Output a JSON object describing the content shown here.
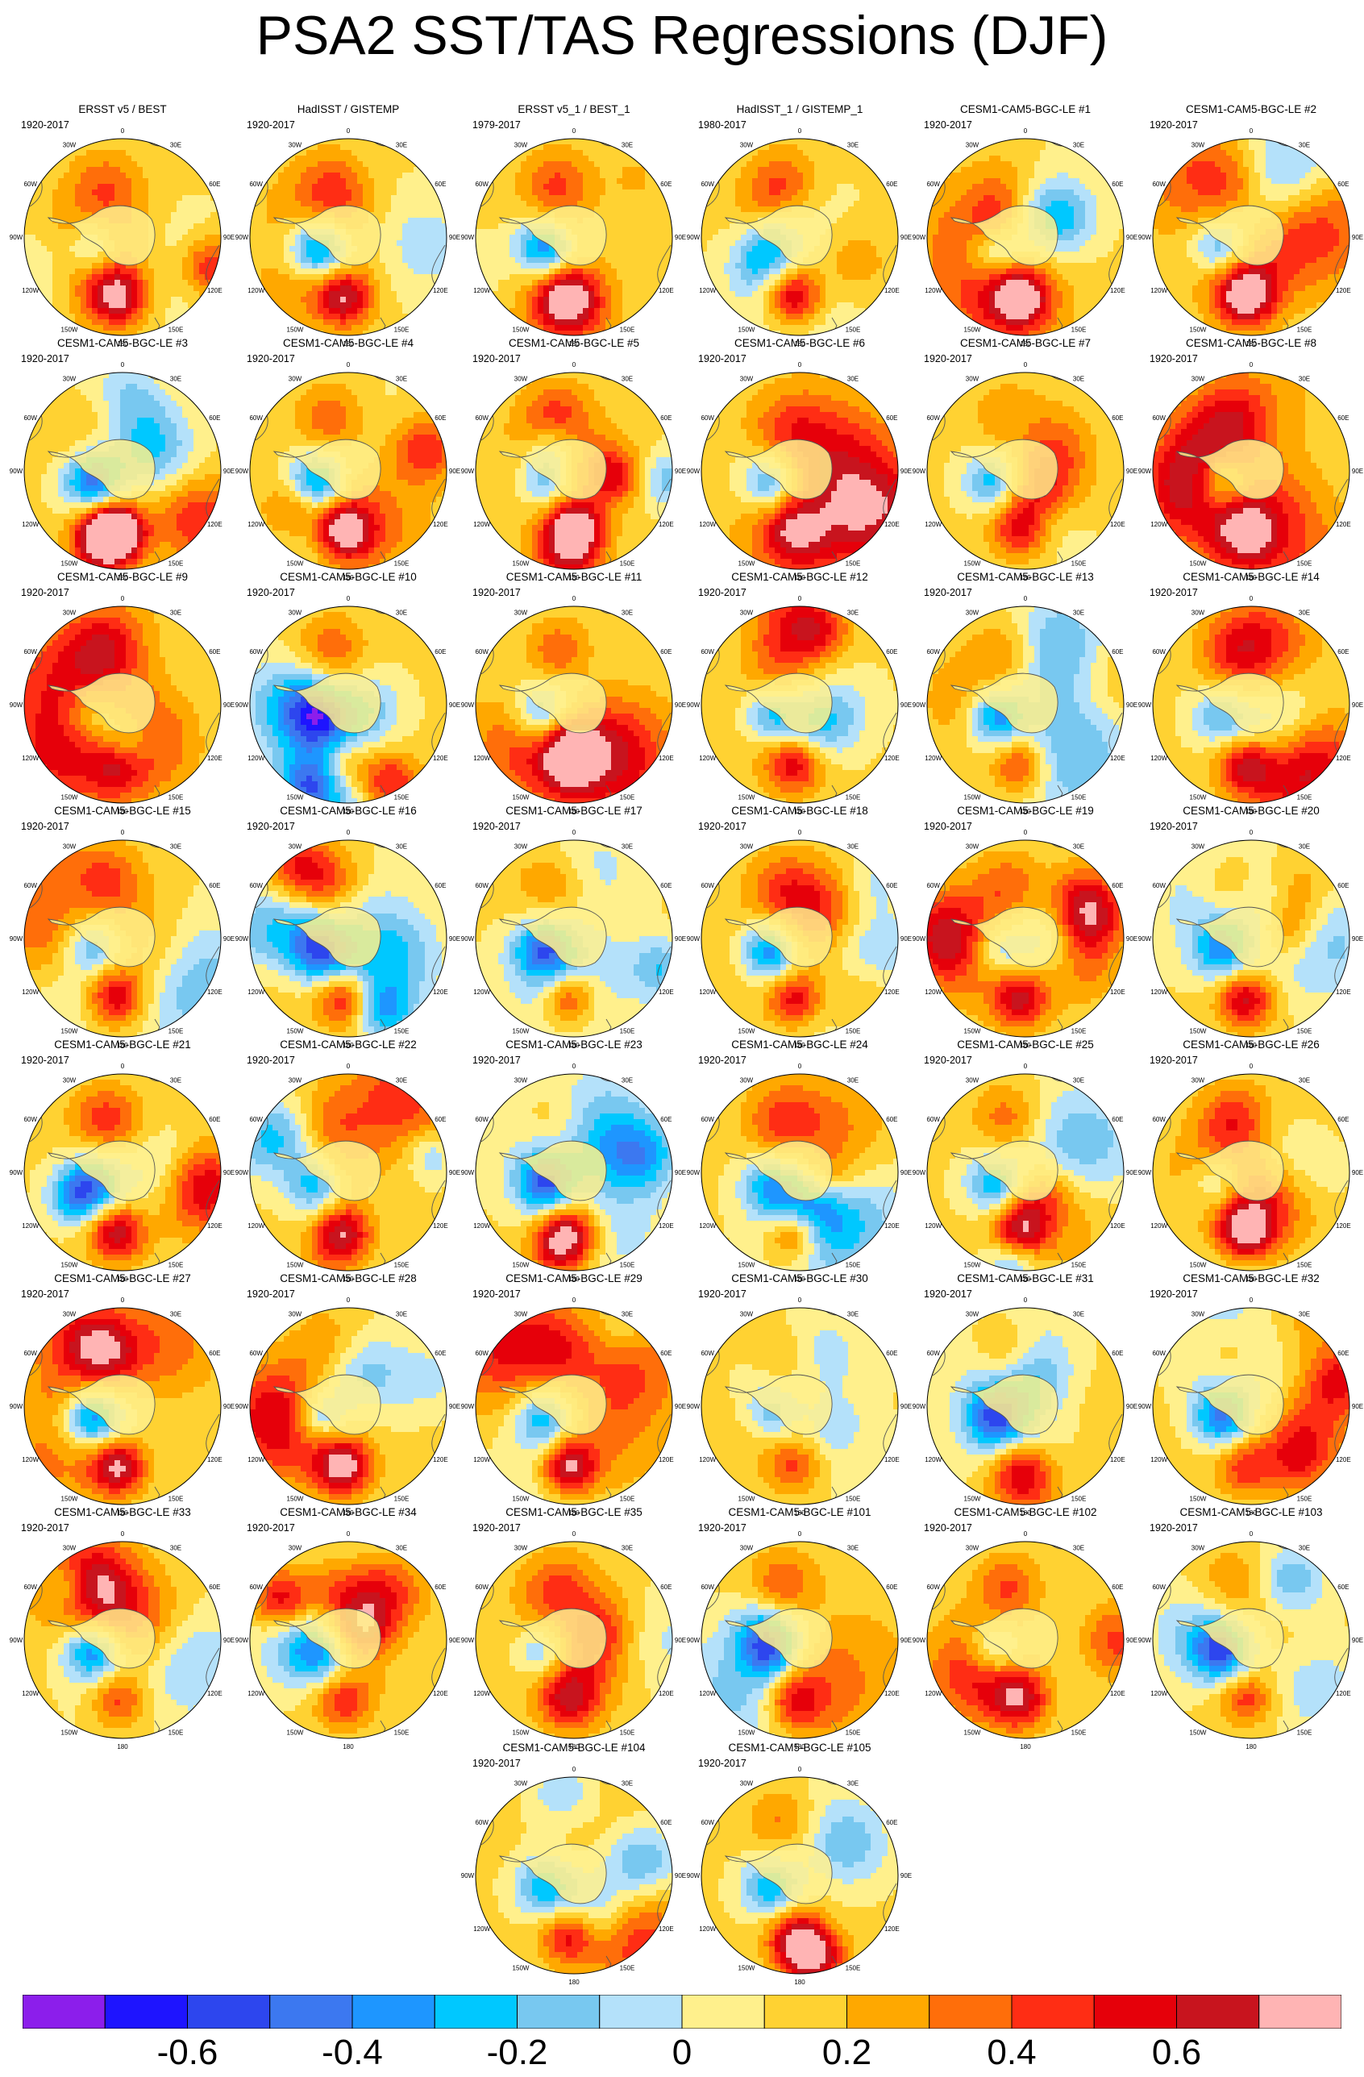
{
  "title": "PSA2 SST/TAS Regressions (DJF)",
  "panels": [
    {
      "title": "ERSST v5 / BEST",
      "period": "1920-2017"
    },
    {
      "title": "HadISST / GISTEMP",
      "period": "1920-2017"
    },
    {
      "title": "ERSST v5_1 / BEST_1",
      "period": "1979-2017"
    },
    {
      "title": "HadISST_1 / GISTEMP_1",
      "period": "1980-2017"
    },
    {
      "title": "CESM1-CAM5-BGC-LE #1",
      "period": "1920-2017"
    },
    {
      "title": "CESM1-CAM5-BGC-LE #2",
      "period": "1920-2017"
    },
    {
      "title": "CESM1-CAM5-BGC-LE #3",
      "period": "1920-2017"
    },
    {
      "title": "CESM1-CAM5-BGC-LE #4",
      "period": "1920-2017"
    },
    {
      "title": "CESM1-CAM5-BGC-LE #5",
      "period": "1920-2017"
    },
    {
      "title": "CESM1-CAM5-BGC-LE #6",
      "period": "1920-2017"
    },
    {
      "title": "CESM1-CAM5-BGC-LE #7",
      "period": "1920-2017"
    },
    {
      "title": "CESM1-CAM5-BGC-LE #8",
      "period": "1920-2017"
    },
    {
      "title": "CESM1-CAM5-BGC-LE #9",
      "period": "1920-2017"
    },
    {
      "title": "CESM1-CAM5-BGC-LE #10",
      "period": "1920-2017"
    },
    {
      "title": "CESM1-CAM5-BGC-LE #11",
      "period": "1920-2017"
    },
    {
      "title": "CESM1-CAM5-BGC-LE #12",
      "period": "1920-2017"
    },
    {
      "title": "CESM1-CAM5-BGC-LE #13",
      "period": "1920-2017"
    },
    {
      "title": "CESM1-CAM5-BGC-LE #14",
      "period": "1920-2017"
    },
    {
      "title": "CESM1-CAM5-BGC-LE #15",
      "period": "1920-2017"
    },
    {
      "title": "CESM1-CAM5-BGC-LE #16",
      "period": "1920-2017"
    },
    {
      "title": "CESM1-CAM5-BGC-LE #17",
      "period": "1920-2017"
    },
    {
      "title": "CESM1-CAM5-BGC-LE #18",
      "period": "1920-2017"
    },
    {
      "title": "CESM1-CAM5-BGC-LE #19",
      "period": "1920-2017"
    },
    {
      "title": "CESM1-CAM5-BGC-LE #20",
      "period": "1920-2017"
    },
    {
      "title": "CESM1-CAM5-BGC-LE #21",
      "period": "1920-2017"
    },
    {
      "title": "CESM1-CAM5-BGC-LE #22",
      "period": "1920-2017"
    },
    {
      "title": "CESM1-CAM5-BGC-LE #23",
      "period": "1920-2017"
    },
    {
      "title": "CESM1-CAM5-BGC-LE #24",
      "period": "1920-2017"
    },
    {
      "title": "CESM1-CAM5-BGC-LE #25",
      "period": "1920-2017"
    },
    {
      "title": "CESM1-CAM5-BGC-LE #26",
      "period": "1920-2017"
    },
    {
      "title": "CESM1-CAM5-BGC-LE #27",
      "period": "1920-2017"
    },
    {
      "title": "CESM1-CAM5-BGC-LE #28",
      "period": "1920-2017"
    },
    {
      "title": "CESM1-CAM5-BGC-LE #29",
      "period": "1920-2017"
    },
    {
      "title": "CESM1-CAM5-BGC-LE #30",
      "period": "1920-2017"
    },
    {
      "title": "CESM1-CAM5-BGC-LE #31",
      "period": "1920-2017"
    },
    {
      "title": "CESM1-CAM5-BGC-LE #32",
      "period": "1920-2017"
    },
    {
      "title": "CESM1-CAM5-BGC-LE #33",
      "period": "1920-2017"
    },
    {
      "title": "CESM1-CAM5-BGC-LE #34",
      "period": "1920-2017"
    },
    {
      "title": "CESM1-CAM5-BGC-LE #35",
      "period": "1920-2017"
    },
    {
      "title": "CESM1-CAM5-BGC-LE #101",
      "period": "1920-2017"
    },
    {
      "title": "CESM1-CAM5-BGC-LE #102",
      "period": "1920-2017"
    },
    {
      "title": "CESM1-CAM5-BGC-LE #103",
      "period": "1920-2017"
    },
    {
      "title": "CESM1-CAM5-BGC-LE #104",
      "period": "1920-2017"
    },
    {
      "title": "CESM1-CAM5-BGC-LE #105",
      "period": "1920-2017"
    }
  ],
  "longitude_labels": [
    "0",
    "30E",
    "60E",
    "90E",
    "120E",
    "150E",
    "180",
    "150W",
    "120W",
    "90W",
    "60W",
    "30W"
  ],
  "colorbar": {
    "colors": [
      "#8c1eeb",
      "#1e14ff",
      "#2d46ee",
      "#3c78f0",
      "#1e96ff",
      "#00c8ff",
      "#78c8f0",
      "#b4e1fa",
      "#fff08c",
      "#ffd232",
      "#ffa800",
      "#ff6e0a",
      "#ff2d14",
      "#e6000a",
      "#c8141e",
      "#ffb4b4"
    ],
    "tick_labels": [
      "-0.6",
      "-0.4",
      "-0.2",
      "0",
      "0.2",
      "0.4",
      "0.6"
    ]
  }
}
